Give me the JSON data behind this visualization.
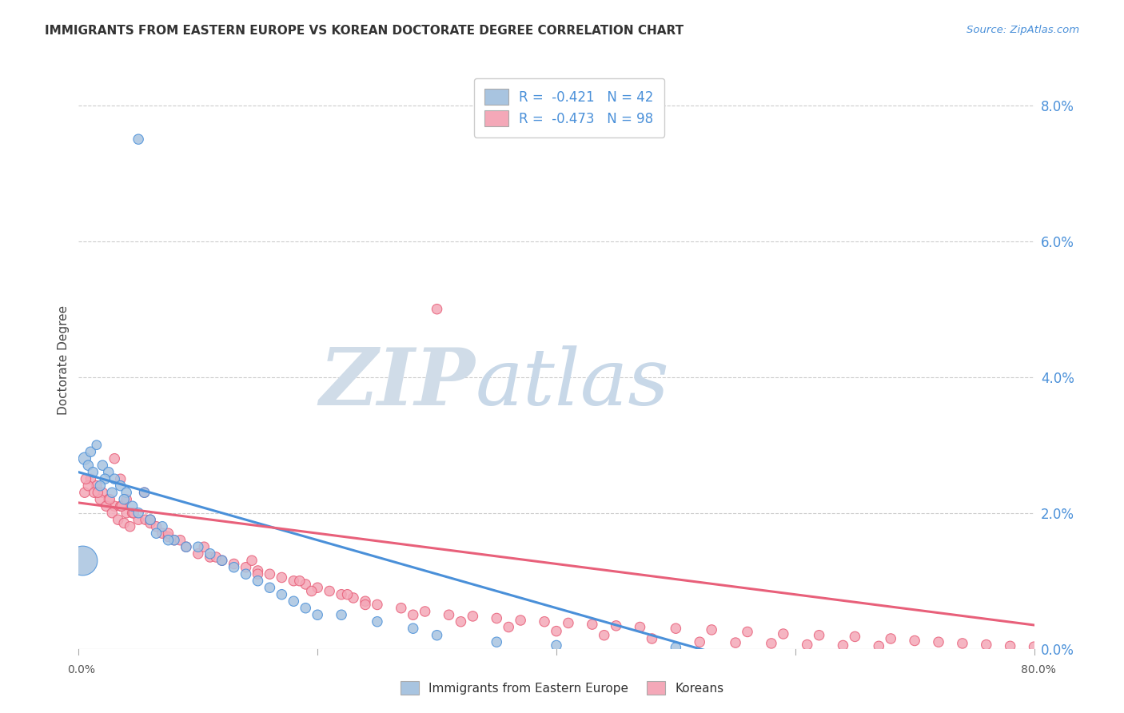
{
  "title": "IMMIGRANTS FROM EASTERN EUROPE VS KOREAN DOCTORATE DEGREE CORRELATION CHART",
  "source": "Source: ZipAtlas.com",
  "ylabel": "Doctorate Degree",
  "right_ytick_vals": [
    0.0,
    2.0,
    4.0,
    6.0,
    8.0
  ],
  "legend_entry1": "R =  -0.421   N = 42",
  "legend_entry2": "R =  -0.473   N = 98",
  "legend_label1": "Immigrants from Eastern Europe",
  "legend_label2": "Koreans",
  "color_blue": "#a8c4e0",
  "color_pink": "#f4a8b8",
  "color_blue_dark": "#4a90d9",
  "color_pink_dark": "#e8607a",
  "color_blue_line": "#4a90d9",
  "color_pink_line": "#e8607a",
  "watermark_color": "#d0dce8",
  "background_color": "#ffffff",
  "grid_color": "#cccccc",
  "blue_scatter_x": [
    5.0,
    0.5,
    1.0,
    1.5,
    2.0,
    2.5,
    3.0,
    0.8,
    1.2,
    2.2,
    3.5,
    4.0,
    1.8,
    2.8,
    3.8,
    5.5,
    4.5,
    5.0,
    6.0,
    7.0,
    8.0,
    9.0,
    10.0,
    11.0,
    12.0,
    6.5,
    7.5,
    13.0,
    14.0,
    15.0,
    16.0,
    17.0,
    18.0,
    19.0,
    20.0,
    22.0,
    25.0,
    28.0,
    30.0,
    35.0,
    40.0,
    50.0
  ],
  "blue_scatter_y": [
    7.5,
    2.8,
    2.9,
    3.0,
    2.7,
    2.6,
    2.5,
    2.7,
    2.6,
    2.5,
    2.4,
    2.3,
    2.4,
    2.3,
    2.2,
    2.3,
    2.1,
    2.0,
    1.9,
    1.8,
    1.6,
    1.5,
    1.5,
    1.4,
    1.3,
    1.7,
    1.6,
    1.2,
    1.1,
    1.0,
    0.9,
    0.8,
    0.7,
    0.6,
    0.5,
    0.5,
    0.4,
    0.3,
    0.2,
    0.1,
    0.05,
    0.02
  ],
  "blue_scatter_size": [
    80,
    120,
    80,
    70,
    80,
    80,
    80,
    80,
    80,
    80,
    80,
    80,
    80,
    80,
    80,
    80,
    80,
    80,
    80,
    80,
    80,
    80,
    80,
    80,
    80,
    80,
    80,
    80,
    80,
    80,
    80,
    80,
    80,
    80,
    80,
    80,
    80,
    80,
    80,
    80,
    80,
    80
  ],
  "pink_scatter_x": [
    0.5,
    1.0,
    1.5,
    2.0,
    2.5,
    3.0,
    3.5,
    4.0,
    4.5,
    5.0,
    0.8,
    1.3,
    1.8,
    2.3,
    2.8,
    3.3,
    3.8,
    4.3,
    0.6,
    1.6,
    2.6,
    3.6,
    4.6,
    5.6,
    6.0,
    6.5,
    7.0,
    7.5,
    8.0,
    9.0,
    10.0,
    11.0,
    12.0,
    13.0,
    14.0,
    15.0,
    16.0,
    17.0,
    18.0,
    19.0,
    20.0,
    21.0,
    22.0,
    23.0,
    24.0,
    25.0,
    27.0,
    29.0,
    31.0,
    33.0,
    35.0,
    37.0,
    39.0,
    41.0,
    43.0,
    45.0,
    47.0,
    50.0,
    53.0,
    56.0,
    59.0,
    62.0,
    65.0,
    68.0,
    70.0,
    72.0,
    74.0,
    76.0,
    78.0,
    80.0,
    30.0,
    3.0,
    5.5,
    7.5,
    10.5,
    14.5,
    18.5,
    22.5,
    3.5,
    4.0,
    6.0,
    8.5,
    11.5,
    15.0,
    19.5,
    24.0,
    28.0,
    32.0,
    36.0,
    40.0,
    44.0,
    48.0,
    52.0,
    55.0,
    58.0,
    61.0,
    64.0,
    67.0
  ],
  "pink_scatter_y": [
    2.3,
    2.5,
    2.4,
    2.3,
    2.2,
    2.1,
    2.1,
    2.0,
    2.0,
    1.9,
    2.4,
    2.3,
    2.2,
    2.1,
    2.0,
    1.9,
    1.85,
    1.8,
    2.5,
    2.3,
    2.2,
    2.1,
    2.0,
    1.9,
    1.85,
    1.8,
    1.7,
    1.65,
    1.6,
    1.5,
    1.4,
    1.35,
    1.3,
    1.25,
    1.2,
    1.15,
    1.1,
    1.05,
    1.0,
    0.95,
    0.9,
    0.85,
    0.8,
    0.75,
    0.7,
    0.65,
    0.6,
    0.55,
    0.5,
    0.48,
    0.45,
    0.42,
    0.4,
    0.38,
    0.36,
    0.34,
    0.32,
    0.3,
    0.28,
    0.25,
    0.22,
    0.2,
    0.18,
    0.15,
    0.12,
    0.1,
    0.08,
    0.06,
    0.04,
    0.03,
    5.0,
    2.8,
    2.3,
    1.7,
    1.5,
    1.3,
    1.0,
    0.8,
    2.5,
    2.2,
    1.9,
    1.6,
    1.35,
    1.1,
    0.85,
    0.65,
    0.5,
    0.4,
    0.32,
    0.26,
    0.2,
    0.15,
    0.1,
    0.09,
    0.08,
    0.06,
    0.05,
    0.04
  ],
  "pink_scatter_size": [
    80,
    80,
    80,
    80,
    80,
    80,
    80,
    80,
    80,
    80,
    80,
    80,
    80,
    80,
    80,
    80,
    80,
    80,
    80,
    80,
    80,
    80,
    80,
    80,
    80,
    80,
    80,
    80,
    80,
    80,
    80,
    80,
    80,
    80,
    80,
    80,
    80,
    80,
    80,
    80,
    80,
    80,
    80,
    80,
    80,
    80,
    80,
    80,
    80,
    80,
    80,
    80,
    80,
    80,
    80,
    80,
    80,
    80,
    80,
    80,
    80,
    80,
    80,
    80,
    80,
    80,
    80,
    80,
    80,
    80,
    80,
    80,
    80,
    80,
    80,
    80,
    80,
    80,
    80,
    80,
    80,
    80,
    80,
    80,
    80,
    80,
    80,
    80,
    80,
    80,
    80,
    80,
    80,
    80,
    80,
    80,
    80,
    80
  ],
  "blue_line_x_start": 0.0,
  "blue_line_x_end": 55.0,
  "blue_line_y_start": 2.6,
  "blue_line_y_end": -0.15,
  "pink_line_x_start": 0.0,
  "pink_line_x_end": 80.0,
  "pink_line_y_start": 2.15,
  "pink_line_y_end": 0.35,
  "xmin": 0,
  "xmax": 80,
  "ymin": 0.0,
  "ymax": 8.5,
  "large_blue_x": 0.3,
  "large_blue_y": 1.3,
  "large_blue_size": 700
}
